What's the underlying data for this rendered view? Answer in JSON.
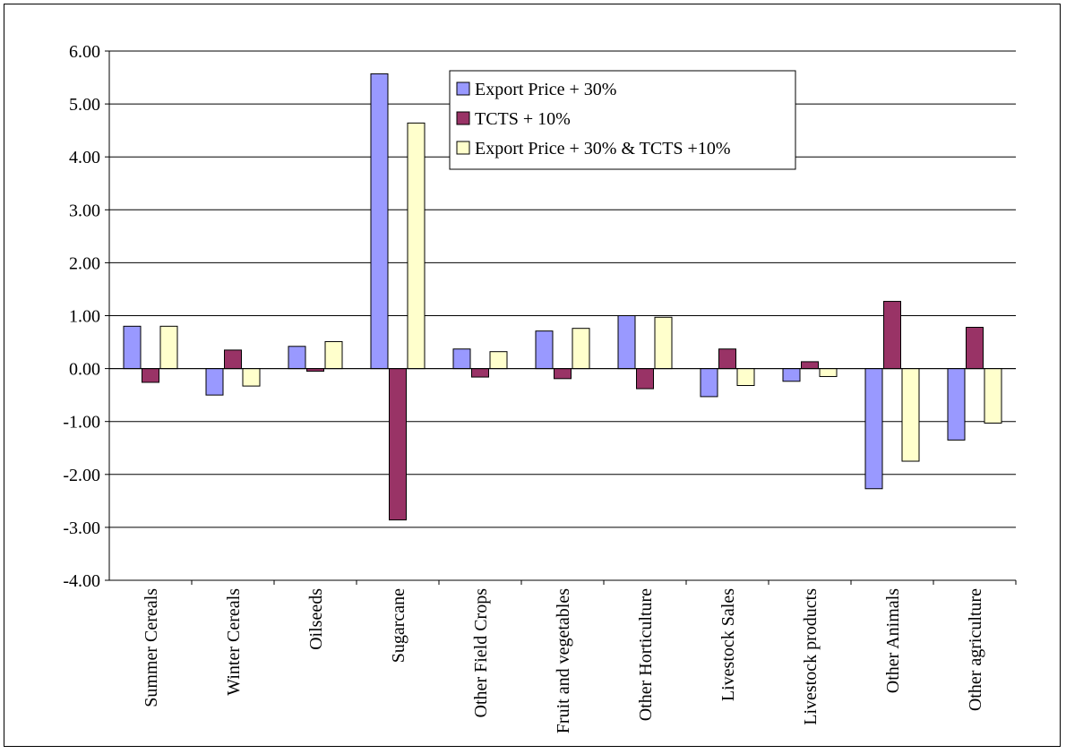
{
  "chart_data": {
    "type": "bar",
    "title": "",
    "xlabel": "",
    "ylabel": "",
    "ylim": [
      -4,
      6
    ],
    "ytick_step": 1,
    "grid": true,
    "legend_position": "top-center",
    "categories": [
      "Summer Cereals",
      "Winter Cereals",
      "Oilseeds",
      "Sugarcane",
      "Other Field Crops",
      "Fruit and vegetables",
      "Other Horticulture",
      "Livestock Sales",
      "Livestock products",
      "Other Animals",
      "Other agriculture"
    ],
    "series": [
      {
        "name": "Export Price + 30%",
        "color": "#9999FF",
        "values": [
          0.8,
          -0.5,
          0.42,
          5.57,
          0.37,
          0.71,
          1.0,
          -0.53,
          -0.24,
          -2.27,
          -1.35
        ]
      },
      {
        "name": "TCTS + 10%",
        "color": "#993366",
        "values": [
          -0.26,
          0.35,
          -0.05,
          -2.86,
          -0.16,
          -0.19,
          -0.38,
          0.37,
          0.13,
          1.27,
          0.78
        ]
      },
      {
        "name": "Export Price + 30% & TCTS +10%",
        "color": "#FFFFCC",
        "values": [
          0.8,
          -0.33,
          0.51,
          4.64,
          0.32,
          0.76,
          0.97,
          -0.32,
          -0.15,
          -1.75,
          -1.03
        ]
      }
    ]
  }
}
